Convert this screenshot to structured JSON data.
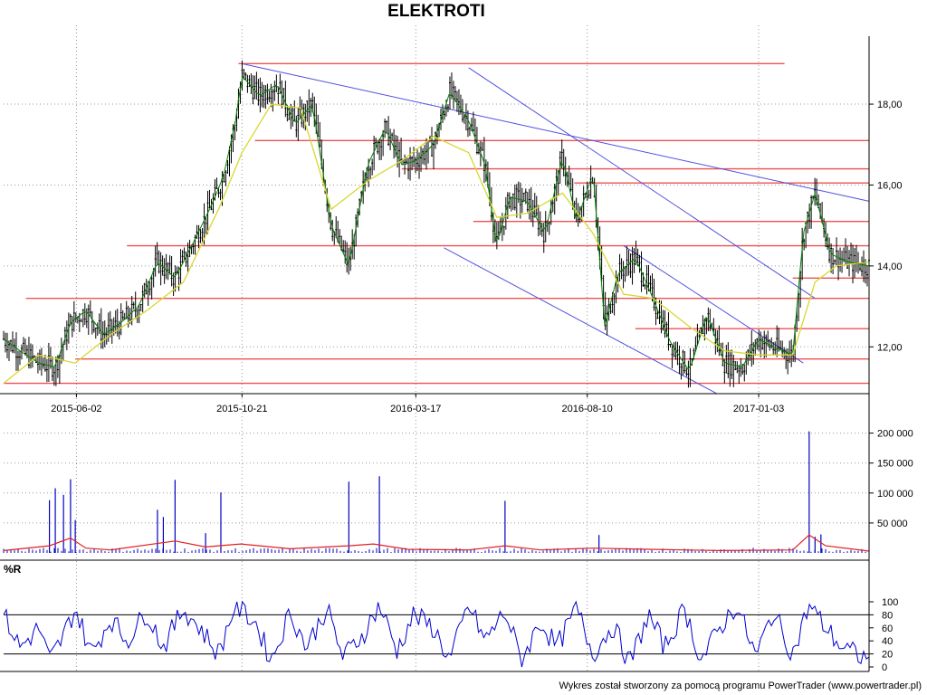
{
  "title": "ELEKTROTI",
  "oscillator_label": "%R",
  "credit": "Wykres został stworzony za pomocą programu PowerTrader (www.powertrader.pl)",
  "colors": {
    "price": "#000000",
    "price_trend": "#008000",
    "moving_average": "#d8d830",
    "support_lines": "#f05050",
    "trend_lines": "#5050e0",
    "volume": "#0000c0",
    "volume_average": "#e02020",
    "oscillator": "#0000d0",
    "grid": "#999999"
  },
  "chart_data": [
    {
      "type": "line",
      "panel": "price",
      "x_tick_labels": [
        "2015-06-02",
        "2015-10-21",
        "2016-03-17",
        "2016-08-10",
        "2017-01-03"
      ],
      "y_ticks": [
        12,
        14,
        16,
        18
      ],
      "y_tick_labels": [
        "12,00",
        "14,00",
        "16,00",
        "18,00"
      ],
      "ylim": [
        11.0,
        19.5
      ],
      "x_range": [
        "2015-04-01",
        "2017-04-07"
      ],
      "grid": true,
      "series": [
        {
          "role": "price",
          "x": [
            "2015-04-01",
            "2015-04-15",
            "2015-05-01",
            "2015-05-15",
            "2015-05-28",
            "2015-06-10",
            "2015-06-25",
            "2015-07-10",
            "2015-07-25",
            "2015-08-10",
            "2015-08-25",
            "2015-09-10",
            "2015-09-25",
            "2015-10-05",
            "2015-10-15",
            "2015-10-21",
            "2015-11-05",
            "2015-11-20",
            "2015-12-05",
            "2015-12-20",
            "2016-01-05",
            "2016-01-20",
            "2016-02-05",
            "2016-02-20",
            "2016-03-05",
            "2016-03-17",
            "2016-04-01",
            "2016-04-15",
            "2016-05-01",
            "2016-05-15",
            "2016-05-25",
            "2016-06-05",
            "2016-06-20",
            "2016-07-05",
            "2016-07-20",
            "2016-08-01",
            "2016-08-15",
            "2016-08-25",
            "2016-09-05",
            "2016-09-20",
            "2016-10-05",
            "2016-10-20",
            "2016-11-05",
            "2016-11-20",
            "2016-12-05",
            "2016-12-20",
            "2017-01-03",
            "2017-01-15",
            "2017-02-01",
            "2017-02-10",
            "2017-02-20",
            "2017-03-05",
            "2017-03-20",
            "2017-04-07"
          ],
          "values": [
            12.2,
            11.9,
            11.6,
            11.5,
            12.6,
            12.9,
            12.3,
            12.6,
            13.0,
            14.1,
            13.7,
            14.6,
            15.5,
            16.2,
            17.5,
            18.7,
            18.2,
            18.5,
            17.5,
            18.0,
            15.0,
            14.0,
            16.5,
            17.4,
            16.5,
            16.6,
            17.0,
            18.3,
            17.6,
            16.5,
            14.5,
            15.7,
            15.6,
            14.8,
            16.7,
            15.1,
            16.3,
            12.5,
            13.8,
            14.2,
            13.2,
            12.1,
            11.4,
            12.8,
            11.6,
            11.5,
            12.2,
            12.0,
            11.8,
            14.8,
            15.8,
            14.3,
            14.1,
            14.0
          ]
        },
        {
          "role": "moving_average",
          "x": [
            "2015-04-01",
            "2015-05-01",
            "2015-06-01",
            "2015-07-01",
            "2015-08-01",
            "2015-09-01",
            "2015-10-01",
            "2015-10-21",
            "2015-11-15",
            "2015-12-10",
            "2016-01-05",
            "2016-02-05",
            "2016-03-05",
            "2016-04-01",
            "2016-05-01",
            "2016-05-25",
            "2016-06-20",
            "2016-07-20",
            "2016-08-15",
            "2016-09-10",
            "2016-10-05",
            "2016-11-05",
            "2016-12-05",
            "2017-01-03",
            "2017-02-01",
            "2017-02-20",
            "2017-03-10",
            "2017-04-07"
          ],
          "values": [
            11.1,
            11.8,
            11.6,
            12.3,
            12.9,
            13.6,
            15.4,
            16.8,
            18.0,
            17.9,
            15.4,
            16.1,
            16.6,
            17.2,
            16.8,
            15.2,
            15.3,
            15.8,
            14.8,
            13.3,
            13.2,
            12.5,
            11.9,
            11.8,
            11.8,
            13.6,
            14.0,
            14.1
          ]
        }
      ],
      "support_levels": [
        19.0,
        17.1,
        16.4,
        16.05,
        15.1,
        14.5,
        13.2,
        12.45,
        11.7,
        11.1,
        13.7
      ],
      "trend_lines": [
        {
          "from": [
            "2015-10-21",
            19.0
          ],
          "to": [
            "2017-04-07",
            15.6
          ]
        },
        {
          "from": [
            "2016-05-01",
            18.9
          ],
          "to": [
            "2017-02-20",
            13.2
          ]
        },
        {
          "from": [
            "2016-04-10",
            14.45
          ],
          "to": [
            "2016-11-28",
            10.85
          ]
        },
        {
          "from": [
            "2016-09-10",
            14.5
          ],
          "to": [
            "2017-02-10",
            11.6
          ]
        }
      ]
    },
    {
      "type": "bar",
      "panel": "volume",
      "y_ticks": [
        50000,
        100000,
        150000,
        200000
      ],
      "y_tick_labels": [
        "50 000",
        "100 000",
        "150 000",
        "200 000"
      ],
      "ylim": [
        0,
        210000
      ],
      "x_range": [
        "2015-04-01",
        "2017-04-07"
      ],
      "grid": true,
      "spikes": [
        {
          "x": "2015-05-10",
          "value": 88000
        },
        {
          "x": "2015-05-15",
          "value": 108000
        },
        {
          "x": "2015-05-22",
          "value": 97000
        },
        {
          "x": "2015-05-28",
          "value": 123000
        },
        {
          "x": "2015-06-01",
          "value": 55000
        },
        {
          "x": "2015-08-10",
          "value": 72000
        },
        {
          "x": "2015-08-15",
          "value": 60000
        },
        {
          "x": "2015-08-25",
          "value": 122000
        },
        {
          "x": "2015-09-20",
          "value": 33000
        },
        {
          "x": "2015-10-03",
          "value": 101000
        },
        {
          "x": "2016-01-20",
          "value": 119000
        },
        {
          "x": "2016-02-15",
          "value": 128000
        },
        {
          "x": "2016-06-01",
          "value": 87000
        },
        {
          "x": "2016-08-20",
          "value": 30000
        },
        {
          "x": "2017-02-15",
          "value": 203000
        },
        {
          "x": "2017-02-20",
          "value": 27000
        },
        {
          "x": "2017-02-25",
          "value": 31000
        }
      ],
      "average": {
        "x": [
          "2015-04-01",
          "2015-05-10",
          "2015-05-28",
          "2015-06-10",
          "2015-07-01",
          "2015-08-25",
          "2015-09-20",
          "2015-10-20",
          "2015-12-01",
          "2016-01-20",
          "2016-02-10",
          "2016-03-10",
          "2016-05-01",
          "2016-06-01",
          "2016-07-01",
          "2016-08-15",
          "2016-10-01",
          "2016-12-01",
          "2017-02-01",
          "2017-02-15",
          "2017-03-01",
          "2017-04-07"
        ],
        "values": [
          4000,
          12000,
          25000,
          8000,
          5000,
          20000,
          10000,
          15000,
          7000,
          12000,
          15000,
          6000,
          5000,
          12000,
          5000,
          8000,
          6000,
          4000,
          5000,
          30000,
          12000,
          3000
        ]
      }
    },
    {
      "type": "line",
      "panel": "oscillator",
      "y_ticks": [
        0,
        20,
        40,
        60,
        80,
        100
      ],
      "y_tick_labels": [
        "0",
        "20",
        "40",
        "60",
        "80",
        "100"
      ],
      "ylim": [
        0,
        100
      ],
      "reference_lines": [
        20,
        80
      ],
      "x_range": [
        "2015-04-01",
        "2017-04-07"
      ],
      "series": [
        {
          "role": "williams_r",
          "x": [
            "2015-04-01",
            "2015-04-15",
            "2015-05-01",
            "2015-05-10",
            "2015-05-20",
            "2015-06-01",
            "2015-06-15",
            "2015-07-01",
            "2015-07-15",
            "2015-08-01",
            "2015-08-15",
            "2015-09-01",
            "2015-09-15",
            "2015-10-01",
            "2015-10-15",
            "2015-11-01",
            "2015-11-15",
            "2015-12-01",
            "2015-12-15",
            "2016-01-01",
            "2016-01-15",
            "2016-02-01",
            "2016-02-15",
            "2016-03-01",
            "2016-03-15",
            "2016-04-01",
            "2016-04-15",
            "2016-05-01",
            "2016-05-15",
            "2016-06-01",
            "2016-06-15",
            "2016-07-01",
            "2016-07-15",
            "2016-08-01",
            "2016-08-15",
            "2016-09-01",
            "2016-09-15",
            "2016-10-01",
            "2016-10-15",
            "2016-11-01",
            "2016-11-15",
            "2016-12-01",
            "2016-12-15",
            "2017-01-01",
            "2017-01-15",
            "2017-02-01",
            "2017-02-15",
            "2017-03-01",
            "2017-03-15",
            "2017-04-07"
          ],
          "values": [
            80,
            30,
            60,
            10,
            40,
            90,
            20,
            75,
            40,
            85,
            30,
            90,
            60,
            20,
            95,
            70,
            10,
            85,
            30,
            90,
            15,
            50,
            95,
            25,
            80,
            60,
            10,
            95,
            40,
            85,
            10,
            70,
            30,
            90,
            20,
            65,
            5,
            80,
            30,
            90,
            10,
            60,
            95,
            15,
            85,
            20,
            95,
            60,
            30,
            10
          ]
        }
      ]
    }
  ]
}
